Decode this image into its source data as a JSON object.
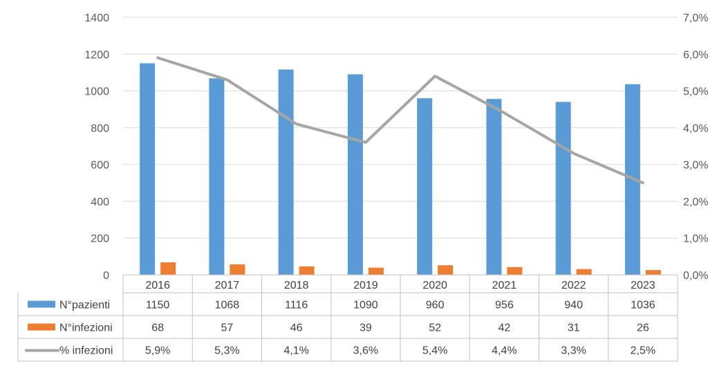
{
  "chart_data": {
    "type": "bar",
    "categories": [
      "2016",
      "2017",
      "2018",
      "2019",
      "2020",
      "2021",
      "2022",
      "2023"
    ],
    "series": [
      {
        "name": "N°pazienti",
        "type": "bar",
        "axis": "left",
        "color": "#5B9BD5",
        "values": [
          1150,
          1068,
          1116,
          1090,
          960,
          956,
          940,
          1036
        ],
        "labels": [
          "1150",
          "1068",
          "1116",
          "1090",
          "960",
          "956",
          "940",
          "1036"
        ]
      },
      {
        "name": "N°infezioni",
        "type": "bar",
        "axis": "left",
        "color": "#ED7D31",
        "values": [
          68,
          57,
          46,
          39,
          52,
          42,
          31,
          26
        ],
        "labels": [
          "68",
          "57",
          "46",
          "39",
          "52",
          "42",
          "31",
          "26"
        ]
      },
      {
        "name": "% infezioni",
        "type": "line",
        "axis": "right",
        "color": "#A5A5A5",
        "values": [
          5.9,
          5.3,
          4.1,
          3.6,
          5.4,
          4.4,
          3.3,
          2.5
        ],
        "labels": [
          "5,9%",
          "5,3%",
          "4,1%",
          "3,6%",
          "5,4%",
          "4,4%",
          "3,3%",
          "2,5%"
        ]
      }
    ],
    "y_left": {
      "ylim": [
        0,
        1400
      ],
      "ticks": [
        "0",
        "200",
        "400",
        "600",
        "800",
        "1000",
        "1200",
        "1400"
      ]
    },
    "y_right": {
      "ylim": [
        0,
        7
      ],
      "ticks": [
        "0,0%",
        "1,0%",
        "2,0%",
        "3,0%",
        "4,0%",
        "5,0%",
        "6,0%",
        "7,0%"
      ]
    },
    "grid": true,
    "legend": "data-table-below",
    "title": "",
    "xlabel": "",
    "ylabel": ""
  }
}
